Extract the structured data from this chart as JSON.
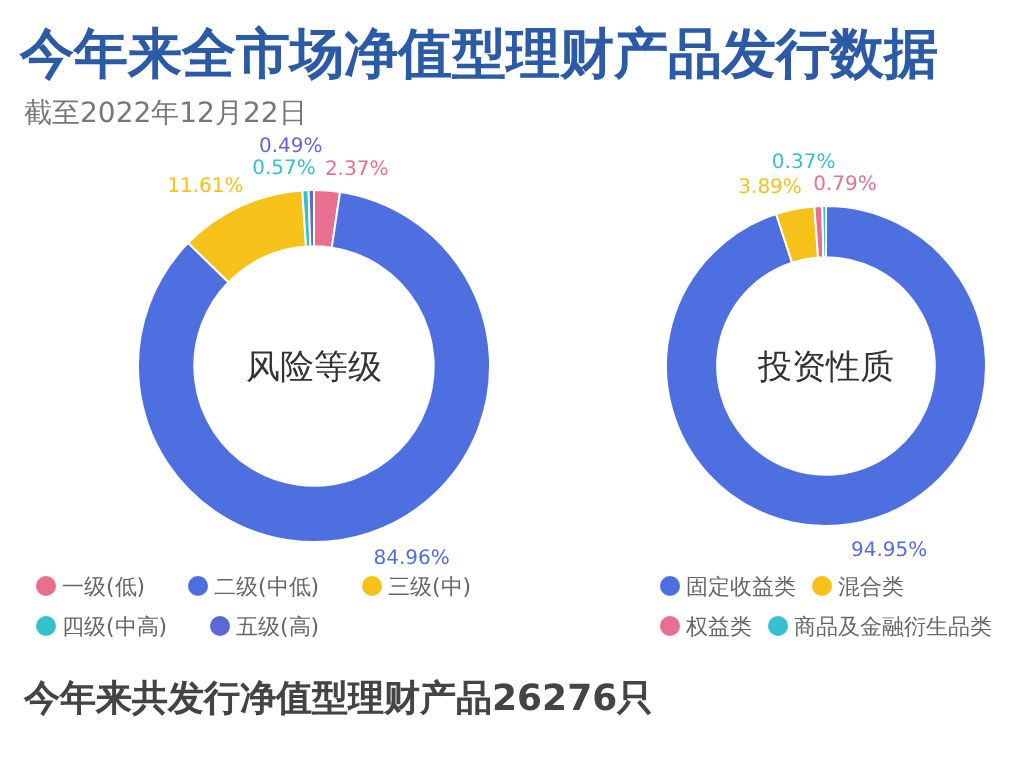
{
  "chart_data": [
    {
      "type": "other",
      "title": "今年来全市场净值型理财产品发行数据",
      "subtitle": "截至2022年12月22日",
      "annotations": [
        "今年来共发行净值型理财产品26276只"
      ]
    },
    {
      "type": "donut",
      "title": "风险等级",
      "categories": [
        "一级(低)",
        "二级(中低)",
        "三级(中)",
        "四级(中高)",
        "五级(高)"
      ],
      "values": [
        2.37,
        84.96,
        11.61,
        0.57,
        0.49
      ],
      "colors": [
        "#e8708e",
        "#4d6fe0",
        "#f6c21a",
        "#35c0cf",
        "#5d67d6"
      ],
      "value_labels": [
        "2.37%",
        "84.96%",
        "11.61%",
        "0.57%",
        "0.49%"
      ],
      "legend": "bottom"
    },
    {
      "type": "donut",
      "title": "投资性质",
      "categories": [
        "固定收益类",
        "混合类",
        "权益类",
        "商品及金融衍生品类"
      ],
      "values": [
        94.95,
        3.89,
        0.79,
        0.37
      ],
      "colors": [
        "#4d6fe0",
        "#f6c21a",
        "#e8708e",
        "#35c0cf"
      ],
      "value_labels": [
        "94.95%",
        "3.89%",
        "0.79%",
        "0.37%"
      ],
      "legend": "bottom"
    }
  ]
}
